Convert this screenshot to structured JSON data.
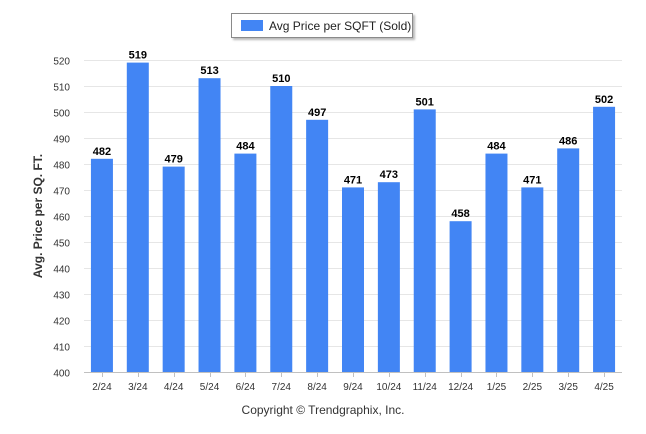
{
  "legend": {
    "label": "Avg Price per SQFT (Sold)",
    "color": "#4285f4"
  },
  "footer": {
    "copyright": "Copyright © Trendgraphix, Inc."
  },
  "chart_data": {
    "type": "bar",
    "categories": [
      "2/24",
      "3/24",
      "4/24",
      "5/24",
      "6/24",
      "7/24",
      "8/24",
      "9/24",
      "10/24",
      "11/24",
      "12/24",
      "1/25",
      "2/25",
      "3/25",
      "4/25"
    ],
    "values": [
      482,
      519,
      479,
      513,
      484,
      510,
      497,
      471,
      473,
      501,
      458,
      484,
      471,
      486,
      502
    ],
    "series": [
      {
        "name": "Avg Price per SQFT (Sold)",
        "values": [
          482,
          519,
          479,
          513,
          484,
          510,
          497,
          471,
          473,
          501,
          458,
          484,
          471,
          486,
          502
        ],
        "color": "#4285f4"
      }
    ],
    "xlabel": "",
    "ylabel": "Avg. Price per SQ. FT.",
    "ylim": [
      400,
      520
    ],
    "yticks": [
      400,
      410,
      420,
      430,
      440,
      450,
      460,
      470,
      480,
      490,
      500,
      510,
      520
    ],
    "data_labels": true,
    "grid": true,
    "legend_position": "top-center"
  }
}
